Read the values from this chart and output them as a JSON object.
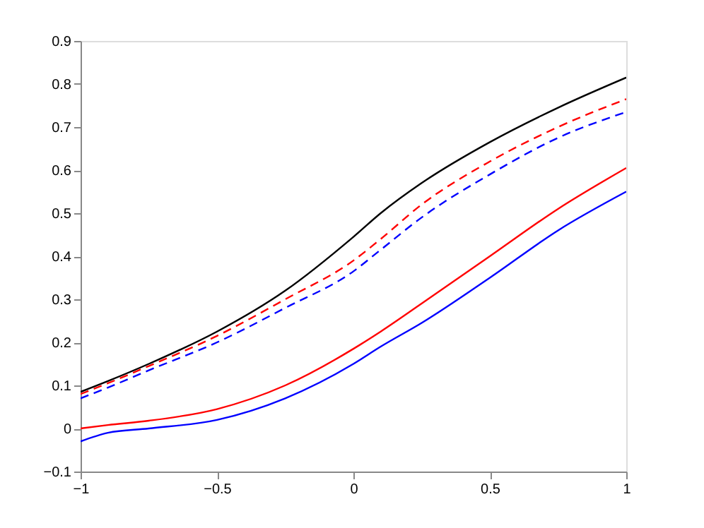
{
  "chart_data": {
    "type": "line",
    "xlim": [
      -1,
      1
    ],
    "ylim": [
      -0.1,
      0.9
    ],
    "xticks": [
      -1,
      -0.5,
      0,
      0.5,
      1
    ],
    "yticks": [
      -0.1,
      0,
      0.1,
      0.2,
      0.3,
      0.4,
      0.5,
      0.6,
      0.7,
      0.8,
      0.9
    ],
    "x": [
      -1,
      -0.9,
      -0.75,
      -0.5,
      -0.25,
      0,
      0.1,
      0.25,
      0.5,
      0.75,
      1
    ],
    "grid": false,
    "series": [
      {
        "color": "#000000",
        "line_style": "solid",
        "values": [
          0.085,
          0.11,
          0.15,
          0.225,
          0.32,
          0.445,
          0.5,
          0.57,
          0.665,
          0.745,
          0.815
        ]
      },
      {
        "color": "#ff0000",
        "line_style": "dashed",
        "values": [
          0.08,
          0.105,
          0.145,
          0.215,
          0.3,
          0.39,
          0.44,
          0.52,
          0.62,
          0.7,
          0.765
        ]
      },
      {
        "color": "#0000ff",
        "line_style": "dashed",
        "values": [
          0.07,
          0.095,
          0.135,
          0.2,
          0.28,
          0.365,
          0.415,
          0.49,
          0.59,
          0.675,
          0.735
        ]
      },
      {
        "color": "#ff0000",
        "line_style": "solid",
        "values": [
          0.0,
          0.008,
          0.018,
          0.045,
          0.1,
          0.185,
          0.225,
          0.29,
          0.4,
          0.51,
          0.605
        ]
      },
      {
        "color": "#0000ff",
        "line_style": "solid",
        "values": [
          -0.03,
          -0.01,
          0.0,
          0.02,
          0.07,
          0.15,
          0.19,
          0.245,
          0.35,
          0.46,
          0.55
        ]
      }
    ]
  }
}
